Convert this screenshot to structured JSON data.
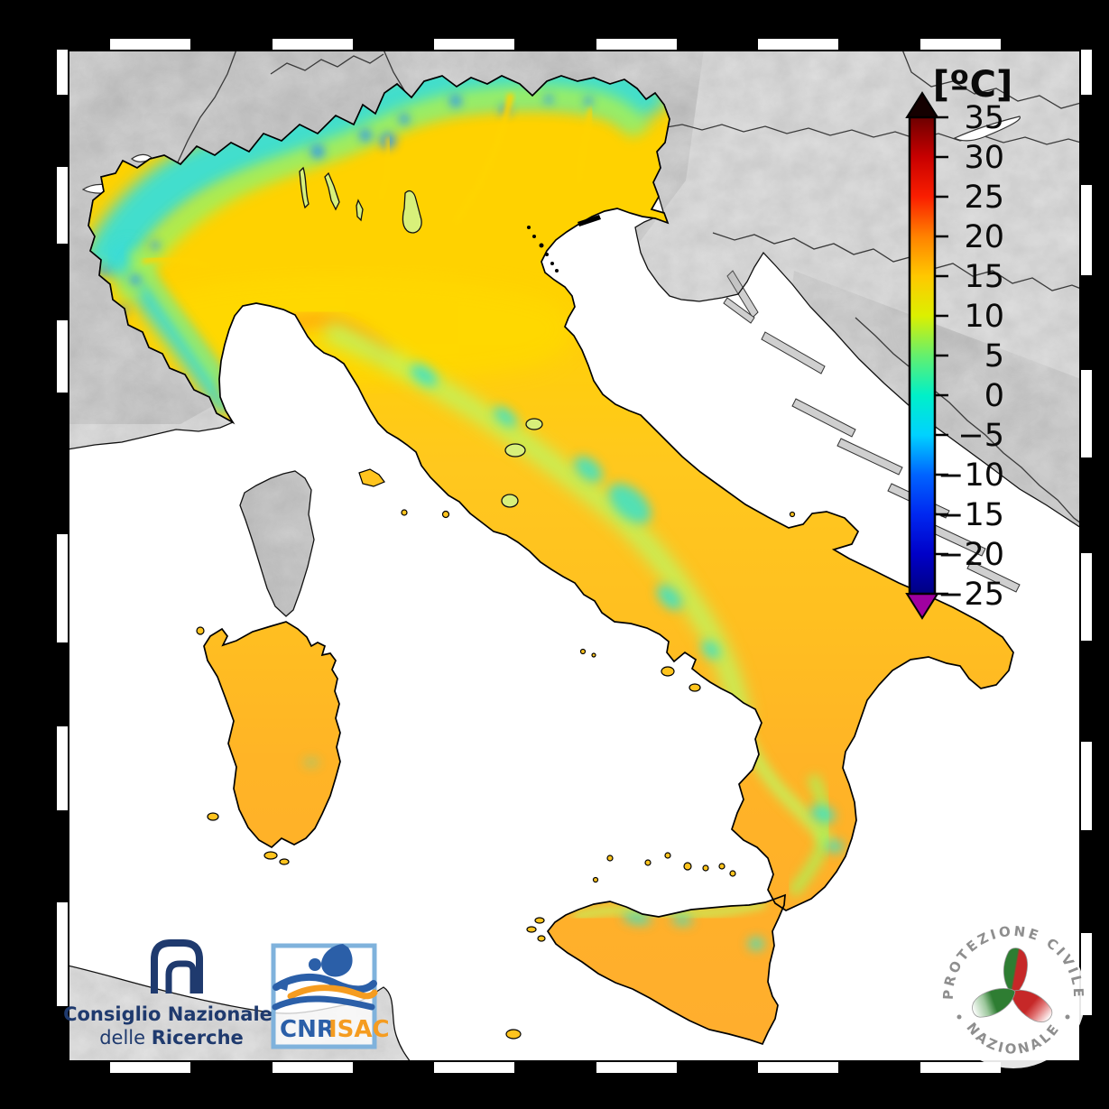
{
  "map": {
    "kind": "surface temperature analysis map",
    "region": "Italy",
    "sea_color": "#FFFFFF",
    "foreign_terrain_color": "#DFDFDF",
    "coastline_color": "#000000",
    "background_color": "#000000"
  },
  "colorbar": {
    "title": "[ºC]",
    "unit": "°C",
    "min": -25,
    "max": 35,
    "ticks": [
      "35",
      "30",
      "25",
      "20",
      "15",
      "10",
      "5",
      "0",
      "−5",
      "−10",
      "−15",
      "−20",
      "−25"
    ],
    "tick_values": [
      35,
      30,
      25,
      20,
      15,
      10,
      5,
      0,
      -5,
      -10,
      -15,
      -20,
      -25
    ],
    "over_color": "#140000",
    "under_color": "#A000A0",
    "stops": [
      {
        "value": 35,
        "color": "#6E0000"
      },
      {
        "value": 30,
        "color": "#C80000"
      },
      {
        "value": 25,
        "color": "#FA1E00"
      },
      {
        "value": 20,
        "color": "#FF8200"
      },
      {
        "value": 15,
        "color": "#FFC800"
      },
      {
        "value": 10,
        "color": "#DCF000"
      },
      {
        "value": 5,
        "color": "#64F06E"
      },
      {
        "value": 0,
        "color": "#00F0C8"
      },
      {
        "value": -5,
        "color": "#00D2FF"
      },
      {
        "value": -10,
        "color": "#0064FF"
      },
      {
        "value": -15,
        "color": "#0028F0"
      },
      {
        "value": -20,
        "color": "#0000C8"
      },
      {
        "value": -25,
        "color": "#000082"
      }
    ]
  },
  "logos": {
    "cnr": {
      "line1": "Consiglio Nazionale",
      "line2_regular": "delle ",
      "line2_bold": "Ricerche",
      "color": "#1F3A6E"
    },
    "cnr_isac": {
      "cnr": "CNR",
      "isac": "ISAC",
      "blue": "#2B5FA8",
      "orange": "#F59C20",
      "frame_color": "#7FB2DC"
    },
    "protezione_civile": {
      "arc_top": "PROTEZIONE CIVILE",
      "arc_bottom": "NAZIONALE",
      "text_color": "#8E8E8E",
      "green": "#2E7D32",
      "red": "#C62828",
      "white": "#F4F4F4"
    }
  }
}
